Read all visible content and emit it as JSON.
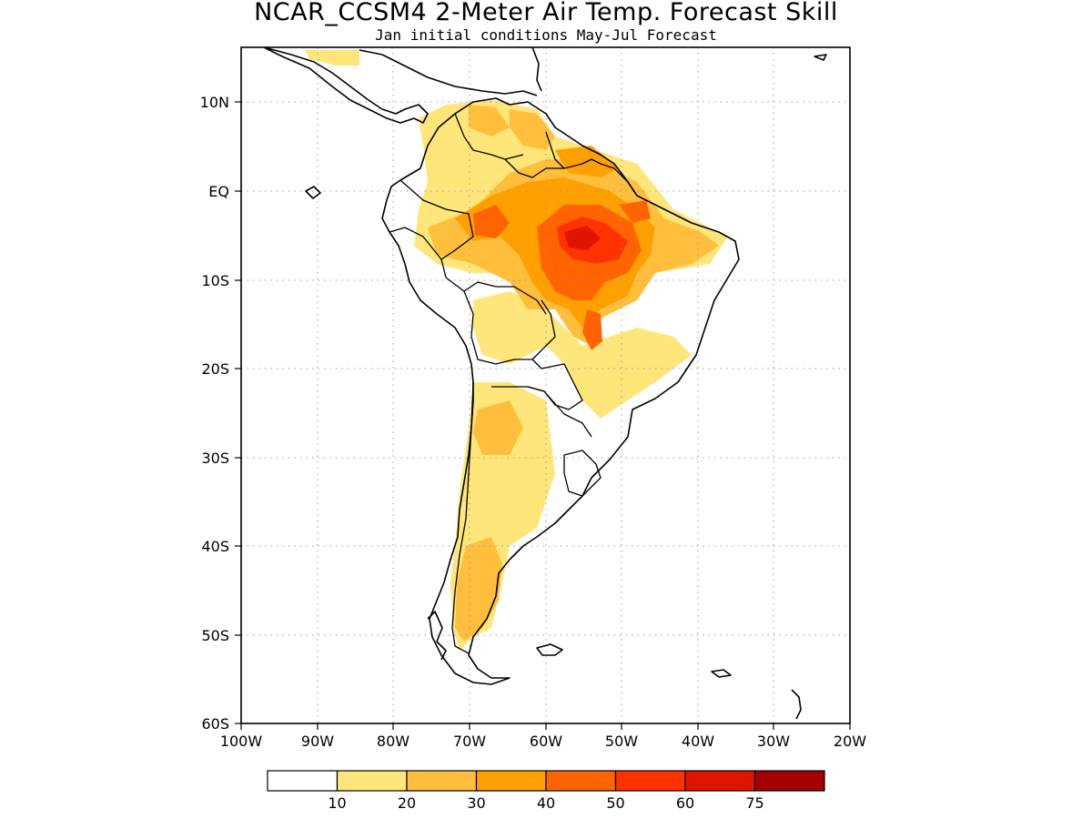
{
  "title": "NCAR_CCSM4 2-Meter Air Temp. Forecast Skill",
  "subtitle": "Jan initial conditions  May-Jul Forecast",
  "axes": {
    "lat_labels": [
      "10N",
      "EQ",
      "10S",
      "20S",
      "30S",
      "40S",
      "50S",
      "60S"
    ],
    "lon_labels": [
      "100W",
      "90W",
      "80W",
      "70W",
      "60W",
      "50W",
      "40W",
      "30W",
      "20W"
    ]
  },
  "colorbar": {
    "labels": [
      "10",
      "20",
      "30",
      "40",
      "50",
      "60",
      "75"
    ],
    "colors": [
      "#ffffff",
      "#ffe67a",
      "#ffbf3c",
      "#ffa000",
      "#ff6400",
      "#ff3200",
      "#e11400",
      "#a50000"
    ]
  },
  "map": {
    "region": "South America",
    "lon_range": [
      -100,
      -20
    ],
    "lat_range": [
      -60,
      16
    ]
  }
}
